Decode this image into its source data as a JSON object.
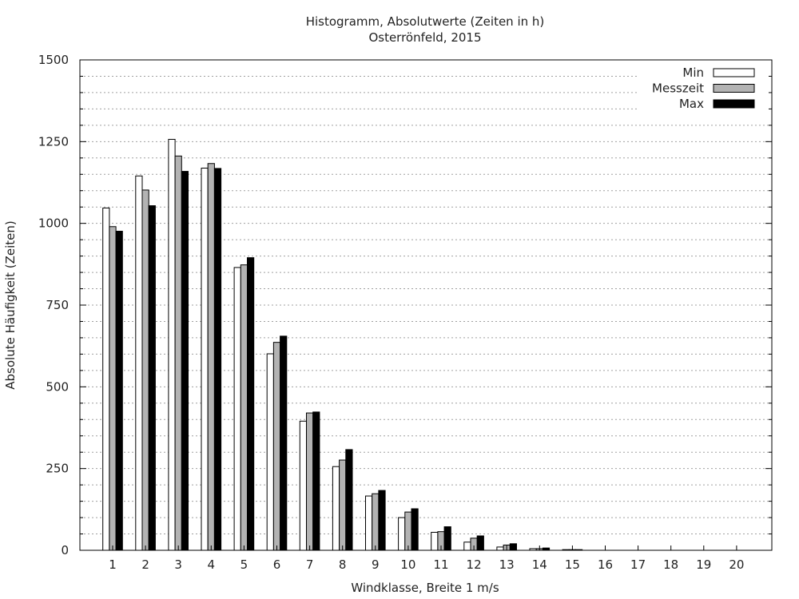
{
  "chart_data": {
    "type": "bar",
    "title": "Histogramm, Absolutwerte (Zeiten in h)",
    "subtitle": "Osterrönfeld, 2015",
    "xlabel": "Windklasse, Breite 1 m/s",
    "ylabel": "Absolute Häufigkeit (Zeiten)",
    "ylim": [
      0,
      1500
    ],
    "yticks": [
      0,
      250,
      500,
      750,
      1000,
      1250,
      1500
    ],
    "minor_step": 50,
    "grid": "horizontal dotted",
    "legend_position": "top-right",
    "categories": [
      "1",
      "2",
      "3",
      "4",
      "5",
      "6",
      "7",
      "8",
      "9",
      "10",
      "11",
      "12",
      "13",
      "14",
      "15",
      "16",
      "17",
      "18",
      "19",
      "20"
    ],
    "series": [
      {
        "name": "Min",
        "color": "#ffffff",
        "values": [
          1047,
          1145,
          1257,
          1169,
          865,
          601,
          395,
          256,
          166,
          100,
          55,
          25,
          10,
          5,
          2,
          0,
          0,
          0,
          0,
          0
        ]
      },
      {
        "name": "Messzeit",
        "color": "#b3b3b3",
        "values": [
          990,
          1102,
          1206,
          1183,
          873,
          636,
          420,
          276,
          173,
          117,
          57,
          37,
          16,
          5,
          2,
          0,
          0,
          0,
          0,
          0
        ]
      },
      {
        "name": "Max",
        "color": "#000000",
        "values": [
          976,
          1054,
          1159,
          1168,
          895,
          655,
          423,
          308,
          183,
          127,
          72,
          44,
          20,
          7,
          2,
          0,
          0,
          0,
          0,
          0
        ]
      }
    ]
  }
}
